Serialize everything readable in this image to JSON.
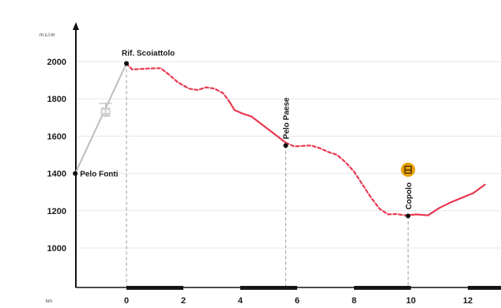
{
  "chart_data": {
    "type": "line",
    "title": "",
    "ylabel": "m.s.l.m",
    "xlabel": "km",
    "ylim": [
      800,
      2150
    ],
    "xlim": [
      -1.8,
      12.6
    ],
    "yticks": [
      "1000",
      "1200",
      "1400",
      "1600",
      "1800",
      "2000"
    ],
    "xticks": [
      "0",
      "2",
      "4",
      "6",
      "8",
      "10",
      "12"
    ],
    "grid": true,
    "colors": {
      "profile": "#e8384f",
      "cable_car": "#bdbdbd",
      "axis": "#111111",
      "grid": "#e6e6e6",
      "poi": "#e8a100"
    },
    "series": [
      {
        "line_style": "dashed",
        "x": [
          0.0,
          0.2,
          0.5,
          0.8,
          1.2,
          1.5,
          1.8,
          2.2,
          2.5,
          2.8,
          3.1,
          3.4,
          3.6
        ],
        "y": [
          1990,
          1958,
          1960,
          1963,
          1965,
          1930,
          1890,
          1855,
          1848,
          1862,
          1855,
          1830,
          1790
        ]
      },
      {
        "line_style": "solid",
        "x": [
          3.6,
          3.8,
          4.1,
          4.4,
          4.7,
          5.0,
          5.3,
          5.6
        ],
        "y": [
          1790,
          1740,
          1720,
          1705,
          1670,
          1635,
          1600,
          1565
        ]
      },
      {
        "line_style": "dashed",
        "x": [
          5.6,
          5.9,
          6.2,
          6.5,
          6.8,
          7.1,
          7.4,
          7.7,
          8.0,
          8.3,
          8.6,
          8.9,
          9.2,
          9.5,
          9.8
        ],
        "y": [
          1565,
          1545,
          1548,
          1550,
          1535,
          1515,
          1500,
          1460,
          1410,
          1340,
          1270,
          1210,
          1180,
          1182,
          1175
        ]
      },
      {
        "line_style": "solid",
        "x": [
          9.8,
          10.2,
          10.6,
          11.0,
          11.4,
          11.8,
          12.2,
          12.6
        ],
        "y": [
          1175,
          1180,
          1175,
          1215,
          1245,
          1270,
          1295,
          1340
        ]
      }
    ],
    "cable_car": {
      "x": [
        -1.8,
        0.0
      ],
      "y": [
        1400,
        1990
      ]
    },
    "points": [
      {
        "label": "Rif. Scoiattolo",
        "x": 0.0,
        "y": 1990,
        "orientation": "horizontal",
        "guide": true
      },
      {
        "label": "Pelo Fonti",
        "x": -1.8,
        "y": 1400,
        "orientation": "horizontal",
        "guide": false
      },
      {
        "label": "Pelo Paese",
        "x": 5.6,
        "y": 1550,
        "orientation": "vertical",
        "guide": true
      },
      {
        "label": "Copolo",
        "x": 9.9,
        "y": 1172,
        "orientation": "vertical",
        "guide": true
      }
    ],
    "cable_car_icon": "cable-car-icon",
    "poi_icon": {
      "icon": "lodging-icon",
      "x": 9.9,
      "y": 1420
    }
  }
}
